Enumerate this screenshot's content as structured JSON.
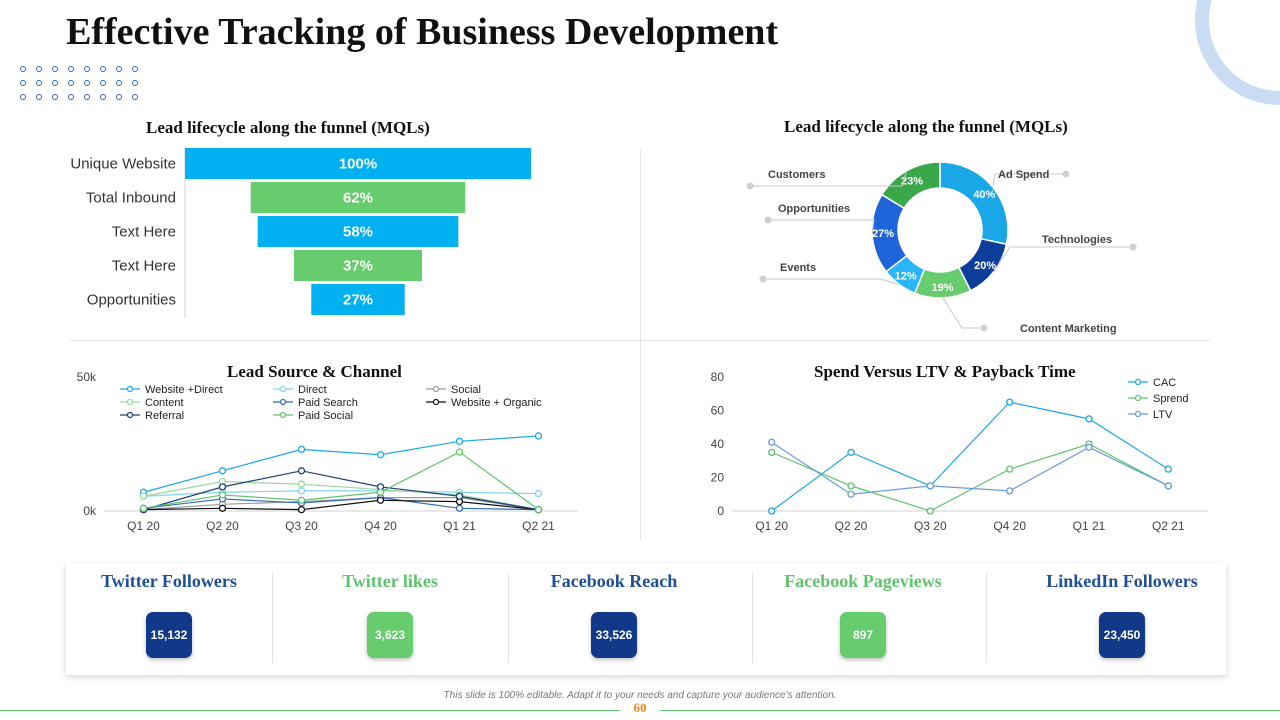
{
  "title": "Effective Tracking of Business Development",
  "colors": {
    "blue": "#00b0f0",
    "green": "#66cc6e",
    "navy": "#0d3a8c",
    "accent_green": "#5ec46c",
    "accent_blue": "#1f4e9c"
  },
  "chart_data": [
    {
      "type": "bar",
      "subtype": "funnel",
      "title": "Lead lifecycle along the funnel (MQLs)",
      "categories": [
        "Unique Website",
        "Total Inbound",
        "Text Here",
        "Text Here",
        "Opportunities"
      ],
      "values": [
        100,
        62,
        58,
        37,
        27
      ],
      "labels": [
        "100%",
        "62%",
        "58%",
        "37%",
        "27%"
      ],
      "colors": [
        "#00b0f0",
        "#66cc6e",
        "#00b0f0",
        "#66cc6e",
        "#00b0f0"
      ]
    },
    {
      "type": "pie",
      "subtype": "doughnut",
      "title": "Lead lifecycle along the funnel (MQLs)",
      "slices": [
        {
          "name": "Ad Spend",
          "value": 40,
          "label": "40%",
          "color": "#1aa7e8"
        },
        {
          "name": "Technologies",
          "value": 20,
          "label": "20%",
          "color": "#0d3f9a"
        },
        {
          "name": "Content Marketing",
          "value": 19,
          "label": "19%",
          "color": "#66cc6e"
        },
        {
          "name": "Events",
          "value": 12,
          "label": "12%",
          "color": "#29b6f6"
        },
        {
          "name": "Opportunities",
          "value": 27,
          "label": "27%",
          "color": "#1f64d8"
        },
        {
          "name": "Customers",
          "value": 23,
          "label": "23%",
          "color": "#3aa84a"
        }
      ]
    },
    {
      "type": "line",
      "title": "Lead Source & Channel",
      "categories": [
        "Q1 20",
        "Q2 20",
        "Q3 20",
        "Q4 20",
        "Q1 21",
        "Q2 21"
      ],
      "ylim": [
        0,
        50000
      ],
      "yticks": [
        {
          "v": 0,
          "label": "0k"
        },
        {
          "v": 50000,
          "label": "50k"
        }
      ],
      "legend": "top",
      "series": [
        {
          "name": "Website +Direct",
          "color": "#1aa7e8",
          "values": [
            7000,
            15000,
            23000,
            21000,
            26000,
            28000
          ]
        },
        {
          "name": "Direct",
          "color": "#7fd4f5",
          "values": [
            5500,
            7000,
            7500,
            7500,
            7000,
            6500
          ]
        },
        {
          "name": "Social",
          "color": "#9a9a9a",
          "values": [
            500,
            2500,
            3500,
            5000,
            5000,
            500
          ]
        },
        {
          "name": "Content",
          "color": "#9ad79e",
          "values": [
            5500,
            11000,
            10000,
            8000,
            6000,
            500
          ]
        },
        {
          "name": "Paid Search",
          "color": "#2f6db5",
          "values": [
            1000,
            4500,
            3000,
            5000,
            1000,
            500
          ]
        },
        {
          "name": "Website + Organic",
          "color": "#111111",
          "values": [
            500,
            1000,
            500,
            4000,
            3500,
            500
          ]
        },
        {
          "name": "Referral",
          "color": "#1f3f7a",
          "values": [
            500,
            9000,
            15000,
            9000,
            5500,
            500
          ]
        },
        {
          "name": "Paid Social",
          "color": "#5ec46c",
          "values": [
            1000,
            6000,
            4000,
            7000,
            22000,
            500
          ]
        }
      ]
    },
    {
      "type": "line",
      "title": "Spend Versus LTV & Payback Time",
      "categories": [
        "Q1 20",
        "Q2 20",
        "Q3 20",
        "Q4 20",
        "Q1 21",
        "Q2 21"
      ],
      "ylim": [
        0,
        80
      ],
      "yticks": [
        {
          "v": 0,
          "label": "0"
        },
        {
          "v": 20,
          "label": "20"
        },
        {
          "v": 40,
          "label": "40"
        },
        {
          "v": 60,
          "label": "60"
        },
        {
          "v": 80,
          "label": "80"
        }
      ],
      "legend": "top-right",
      "series": [
        {
          "name": "CAC",
          "color": "#1aa7e8",
          "values": [
            0,
            35,
            15,
            65,
            55,
            25
          ]
        },
        {
          "name": "Sprend",
          "color": "#5ec46c",
          "values": [
            35,
            15,
            0,
            25,
            40,
            15
          ]
        },
        {
          "name": "LTV",
          "color": "#6a9be0",
          "values": [
            41,
            10,
            15,
            12,
            38,
            15
          ]
        }
      ]
    }
  ],
  "kpis": [
    {
      "label": "Twitter Followers",
      "value": "15,132",
      "label_color": "#1f4e9c",
      "badge_color": "#12388a"
    },
    {
      "label": "Twitter likes",
      "value": "3,623",
      "label_color": "#5ec46c",
      "badge_color": "#66cc6e"
    },
    {
      "label": "Facebook Reach",
      "value": "33,526",
      "label_color": "#1f4e9c",
      "badge_color": "#12388a"
    },
    {
      "label": "Facebook Pageviews",
      "value": "897",
      "label_color": "#5ec46c",
      "badge_color": "#66cc6e"
    },
    {
      "label": "LinkedIn Followers",
      "value": "23,450",
      "label_color": "#1f4e9c",
      "badge_color": "#12388a"
    }
  ],
  "footer": {
    "note": "This slide is 100% editable. Adapt it to your needs and capture your audience's attention.",
    "page": "60"
  }
}
